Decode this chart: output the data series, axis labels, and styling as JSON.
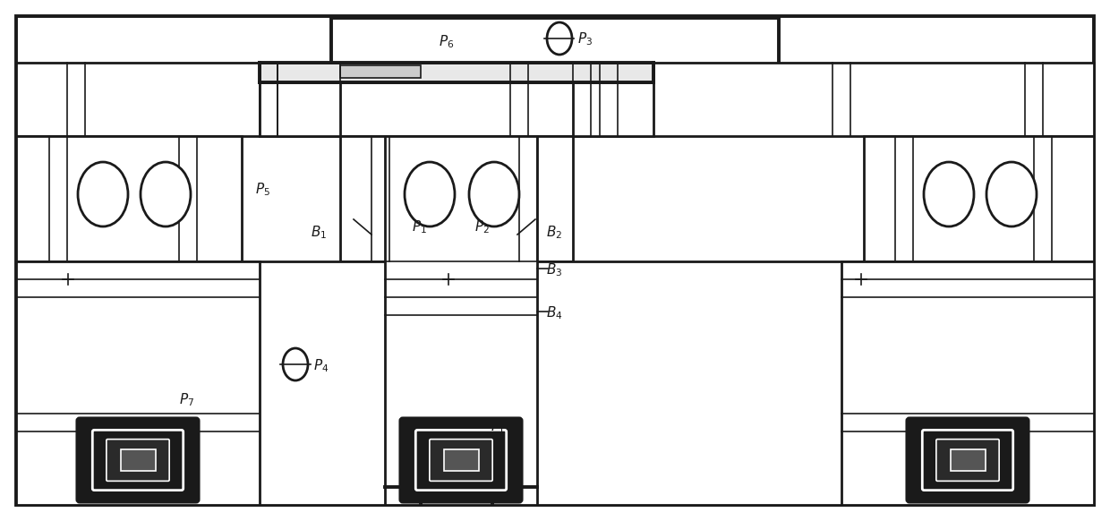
{
  "bg_color": "#ffffff",
  "line_color": "#1a1a1a",
  "lw_thick": 2.8,
  "lw_medium": 2.0,
  "lw_thin": 1.2,
  "fig_width": 12.4,
  "fig_height": 5.82
}
